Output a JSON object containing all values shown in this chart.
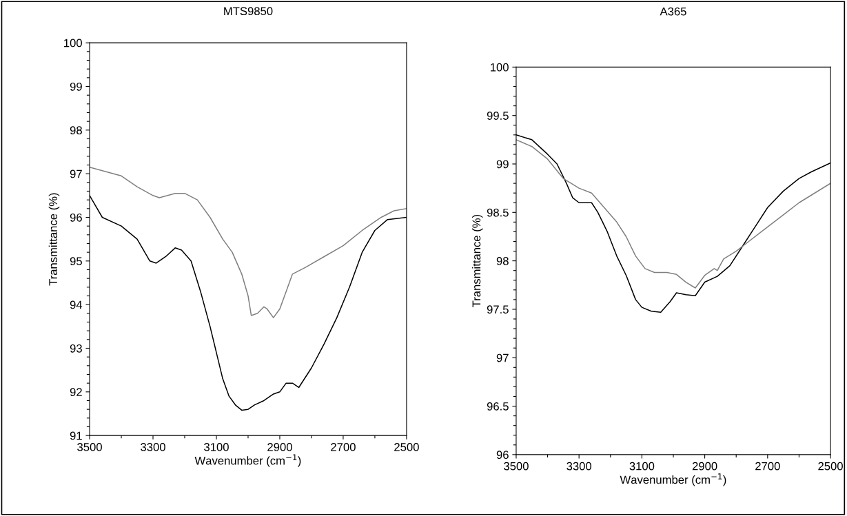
{
  "chart_data": [
    {
      "type": "line",
      "title": "MTS9850",
      "xlabel": "Wavenumber (cm$^{−1}$)",
      "ylabel": "Transmittance (%)",
      "xlim": [
        3500,
        2500
      ],
      "ylim": [
        91,
        100
      ],
      "xticks": [
        3500,
        {
          "value": 3400,
          "label": null
        },
        3300,
        {
          "value": 3200,
          "label": null
        },
        3100,
        {
          "value": 3000,
          "label": null
        },
        2900,
        {
          "value": 2800,
          "label": null
        },
        2700,
        {
          "value": 2600,
          "label": null
        },
        2500
      ],
      "yticks": [
        91,
        {
          "value": 91.2,
          "label": null
        },
        {
          "value": 91.4,
          "label": null
        },
        {
          "value": 91.6,
          "label": null
        },
        {
          "value": 91.8,
          "label": null
        },
        92,
        {
          "value": 92.2,
          "label": null
        },
        {
          "value": 92.4,
          "label": null
        },
        {
          "value": 92.6,
          "label": null
        },
        {
          "value": 92.8,
          "label": null
        },
        93,
        {
          "value": 93.2,
          "label": null
        },
        {
          "value": 93.4,
          "label": null
        },
        {
          "value": 93.6,
          "label": null
        },
        {
          "value": 93.8,
          "label": null
        },
        94,
        {
          "value": 94.2,
          "label": null
        },
        {
          "value": 94.4,
          "label": null
        },
        {
          "value": 94.6,
          "label": null
        },
        {
          "value": 94.8,
          "label": null
        },
        95,
        {
          "value": 95.2,
          "label": null
        },
        {
          "value": 95.4,
          "label": null
        },
        {
          "value": 95.6,
          "label": null
        },
        {
          "value": 95.8,
          "label": null
        },
        96,
        {
          "value": 96.2,
          "label": null
        },
        {
          "value": 96.4,
          "label": null
        },
        {
          "value": 96.6,
          "label": null
        },
        {
          "value": 96.8,
          "label": null
        },
        97,
        {
          "value": 97.2,
          "label": null
        },
        {
          "value": 97.4,
          "label": null
        },
        {
          "value": 97.6,
          "label": null
        },
        {
          "value": 97.8,
          "label": null
        },
        98,
        {
          "value": 98.2,
          "label": null
        },
        {
          "value": 98.4,
          "label": null
        },
        {
          "value": 98.6,
          "label": null
        },
        {
          "value": 98.8,
          "label": null
        },
        99,
        {
          "value": 99.2,
          "label": null
        },
        {
          "value": 99.4,
          "label": null
        },
        {
          "value": 99.6,
          "label": null
        },
        {
          "value": 99.8,
          "label": null
        },
        100
      ],
      "grid": false,
      "series": [
        {
          "color": "#000000",
          "x": [
            3500,
            3460,
            3400,
            3350,
            3310,
            3290,
            3260,
            3230,
            3210,
            3180,
            3150,
            3120,
            3100,
            3080,
            3060,
            3040,
            3020,
            3000,
            2980,
            2950,
            2920,
            2900,
            2880,
            2860,
            2840,
            2800,
            2760,
            2720,
            2680,
            2640,
            2600,
            2560,
            2500
          ],
          "values": [
            96.5,
            96.0,
            95.8,
            95.5,
            95.0,
            94.95,
            95.1,
            95.3,
            95.25,
            95.0,
            94.3,
            93.5,
            92.9,
            92.3,
            91.9,
            91.7,
            91.58,
            91.6,
            91.7,
            91.8,
            91.95,
            92.0,
            92.2,
            92.2,
            92.1,
            92.55,
            93.1,
            93.7,
            94.4,
            95.2,
            95.7,
            95.95,
            96.0
          ]
        },
        {
          "color": "#808080",
          "x": [
            3500,
            3450,
            3400,
            3350,
            3300,
            3280,
            3230,
            3200,
            3160,
            3120,
            3080,
            3050,
            3020,
            3000,
            2990,
            2970,
            2950,
            2940,
            2920,
            2900,
            2880,
            2860,
            2820,
            2760,
            2700,
            2640,
            2580,
            2540,
            2500
          ],
          "values": [
            97.15,
            97.05,
            96.95,
            96.7,
            96.5,
            96.45,
            96.55,
            96.55,
            96.4,
            96.0,
            95.5,
            95.2,
            94.7,
            94.2,
            93.75,
            93.8,
            93.95,
            93.9,
            93.7,
            93.9,
            94.3,
            94.7,
            94.85,
            95.1,
            95.35,
            95.7,
            96.0,
            96.15,
            96.2
          ]
        }
      ]
    },
    {
      "type": "line",
      "title": "A365",
      "xlabel": "Wavenumber (cm$^{−1}$)",
      "ylabel": "Transmittance (%)",
      "xlim": [
        3500,
        2500
      ],
      "ylim": [
        96,
        100
      ],
      "xticks": [
        3500,
        {
          "value": 3400,
          "label": null
        },
        3300,
        {
          "value": 3200,
          "label": null
        },
        3100,
        {
          "value": 3000,
          "label": null
        },
        2900,
        {
          "value": 2800,
          "label": null
        },
        2700,
        {
          "value": 2600,
          "label": null
        },
        2500
      ],
      "yticks": [
        96,
        {
          "value": 96.1,
          "label": null
        },
        {
          "value": 96.2,
          "label": null
        },
        {
          "value": 96.3,
          "label": null
        },
        {
          "value": 96.4,
          "label": null
        },
        96.5,
        {
          "value": 96.6,
          "label": null
        },
        {
          "value": 96.7,
          "label": null
        },
        {
          "value": 96.8,
          "label": null
        },
        {
          "value": 96.9,
          "label": null
        },
        97,
        {
          "value": 97.1,
          "label": null
        },
        {
          "value": 97.2,
          "label": null
        },
        {
          "value": 97.3,
          "label": null
        },
        {
          "value": 97.4,
          "label": null
        },
        97.5,
        {
          "value": 97.6,
          "label": null
        },
        {
          "value": 97.7,
          "label": null
        },
        {
          "value": 97.8,
          "label": null
        },
        {
          "value": 97.9,
          "label": null
        },
        98,
        {
          "value": 98.1,
          "label": null
        },
        {
          "value": 98.2,
          "label": null
        },
        {
          "value": 98.3,
          "label": null
        },
        {
          "value": 98.4,
          "label": null
        },
        98.5,
        {
          "value": 98.6,
          "label": null
        },
        {
          "value": 98.7,
          "label": null
        },
        {
          "value": 98.8,
          "label": null
        },
        {
          "value": 98.9,
          "label": null
        },
        99,
        {
          "value": 99.1,
          "label": null
        },
        {
          "value": 99.2,
          "label": null
        },
        {
          "value": 99.3,
          "label": null
        },
        {
          "value": 99.4,
          "label": null
        },
        99.5,
        {
          "value": 99.6,
          "label": null
        },
        {
          "value": 99.7,
          "label": null
        },
        {
          "value": 99.8,
          "label": null
        },
        {
          "value": 99.9,
          "label": null
        },
        100
      ],
      "grid": false,
      "series": [
        {
          "color": "#000000",
          "x": [
            3500,
            3450,
            3400,
            3370,
            3340,
            3320,
            3300,
            3260,
            3240,
            3210,
            3180,
            3150,
            3120,
            3100,
            3070,
            3040,
            3010,
            2990,
            2960,
            2930,
            2900,
            2860,
            2820,
            2780,
            2740,
            2700,
            2650,
            2600,
            2560,
            2500
          ],
          "values": [
            99.3,
            99.25,
            99.1,
            99.0,
            98.8,
            98.65,
            98.6,
            98.6,
            98.5,
            98.3,
            98.05,
            97.85,
            97.6,
            97.52,
            97.48,
            97.47,
            97.58,
            97.67,
            97.65,
            97.64,
            97.78,
            97.84,
            97.95,
            98.15,
            98.35,
            98.55,
            98.72,
            98.85,
            98.92,
            99.01
          ]
        },
        {
          "color": "#808080",
          "x": [
            3500,
            3450,
            3400,
            3350,
            3300,
            3260,
            3220,
            3180,
            3150,
            3120,
            3090,
            3060,
            3020,
            2990,
            2960,
            2930,
            2900,
            2870,
            2860,
            2840,
            2800,
            2760,
            2720,
            2680,
            2640,
            2600,
            2560,
            2500
          ],
          "values": [
            99.25,
            99.18,
            99.05,
            98.85,
            98.75,
            98.7,
            98.55,
            98.4,
            98.25,
            98.05,
            97.92,
            97.88,
            97.88,
            97.86,
            97.78,
            97.72,
            97.85,
            97.92,
            97.9,
            98.02,
            98.1,
            98.2,
            98.3,
            98.4,
            98.5,
            98.6,
            98.68,
            98.8
          ]
        }
      ]
    }
  ]
}
